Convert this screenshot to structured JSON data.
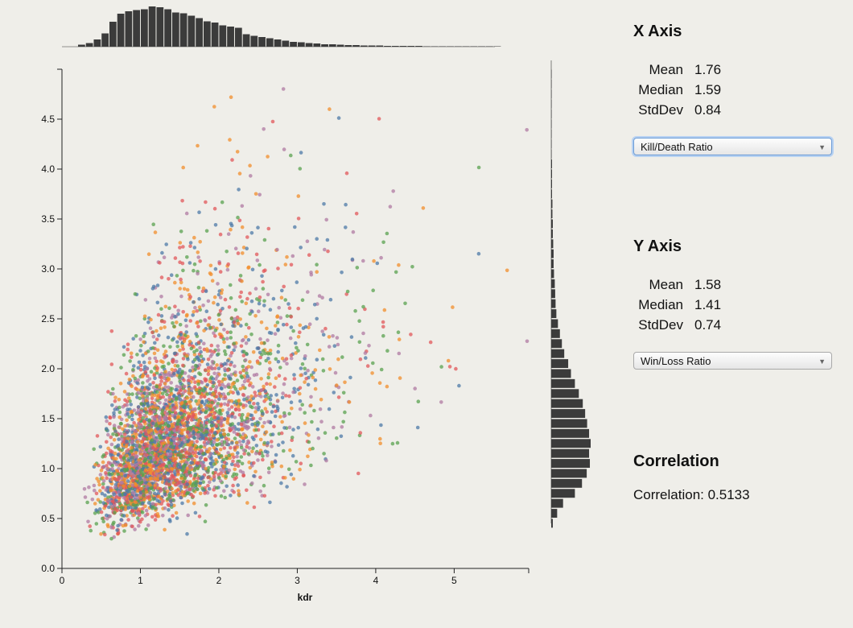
{
  "x_panel": {
    "title": "X Axis",
    "mean_label": "Mean",
    "mean": "1.76",
    "median_label": "Median",
    "median": "1.59",
    "stddev_label": "StdDev",
    "stddev": "0.84",
    "select_value": "Kill/Death Ratio"
  },
  "y_panel": {
    "title": "Y Axis",
    "mean_label": "Mean",
    "mean": "1.58",
    "median_label": "Median",
    "median": "1.41",
    "stddev_label": "StdDev",
    "stddev": "0.74",
    "select_value": "Win/Loss Ratio"
  },
  "correlation": {
    "title": "Correlation",
    "text": "Correlation: 0.5133"
  },
  "chart_data": {
    "type": "scatter",
    "title": "",
    "xlabel": "kdr",
    "ylabel": "",
    "xlim": [
      0,
      5.95
    ],
    "ylim": [
      0,
      5.0
    ],
    "x_ticks": [
      0,
      1,
      2,
      3,
      4,
      5
    ],
    "x_tick_labels": [
      "0",
      "1",
      "2",
      "3",
      "4",
      "5"
    ],
    "y_ticks": [
      0,
      0.5,
      1,
      1.5,
      2,
      2.5,
      3,
      3.5,
      4,
      4.5
    ],
    "y_tick_labels": [
      "0.0",
      "0.5",
      "1.0",
      "1.5",
      "2.0",
      "2.5",
      "3.0",
      "3.5",
      "4.0",
      "4.5"
    ],
    "point_colors": [
      "#e15759",
      "#4e79a7",
      "#59a14f",
      "#f28e2b",
      "#b07aa1"
    ],
    "estimated_point_count": 4000,
    "x_stats": {
      "mean": 1.76,
      "median": 1.59,
      "stddev": 0.84
    },
    "y_stats": {
      "mean": 1.58,
      "median": 1.41,
      "stddev": 0.74
    },
    "correlation": 0.5133,
    "x_histogram": {
      "bin_start": 0,
      "bin_width": 0.1,
      "relative_counts": [
        0,
        0,
        0.05,
        0.09,
        0.18,
        0.33,
        0.62,
        0.82,
        0.88,
        0.91,
        0.93,
        1.0,
        0.98,
        0.93,
        0.85,
        0.83,
        0.77,
        0.71,
        0.63,
        0.6,
        0.53,
        0.5,
        0.47,
        0.31,
        0.27,
        0.24,
        0.21,
        0.18,
        0.15,
        0.12,
        0.11,
        0.09,
        0.08,
        0.06,
        0.06,
        0.05,
        0.04,
        0.04,
        0.03,
        0.03,
        0.03,
        0.02,
        0.02,
        0.02,
        0.02,
        0.02,
        0.01,
        0.01,
        0.01,
        0.01,
        0.01,
        0.01,
        0.01,
        0.01,
        0.01,
        0.01
      ]
    },
    "y_histogram": {
      "bin_start": 0.4,
      "bin_width": 0.1,
      "relative_counts": [
        0.04,
        0.15,
        0.3,
        0.6,
        0.78,
        0.9,
        0.98,
        0.96,
        1.0,
        0.96,
        0.91,
        0.86,
        0.8,
        0.7,
        0.6,
        0.5,
        0.43,
        0.33,
        0.27,
        0.22,
        0.17,
        0.13,
        0.11,
        0.1,
        0.09,
        0.07,
        0.06,
        0.06,
        0.05,
        0.04,
        0.04,
        0.03,
        0.03,
        0.02,
        0.02,
        0.02,
        0.02,
        0.01,
        0.01,
        0.01,
        0.01,
        0.01,
        0.01,
        0.01,
        0.01,
        0.01
      ]
    }
  }
}
